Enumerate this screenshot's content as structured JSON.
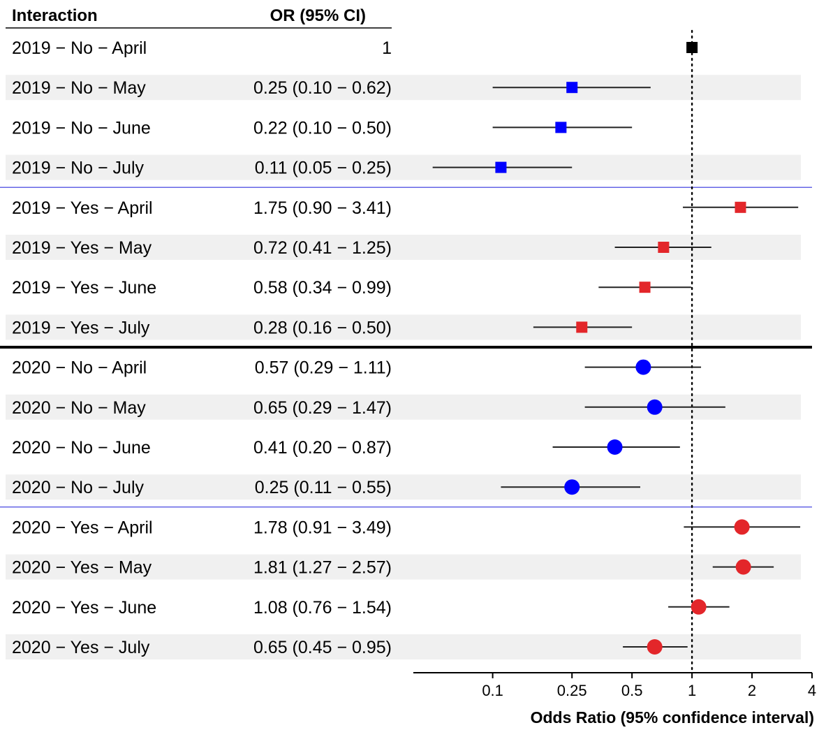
{
  "table_header": {
    "interaction": "Interaction",
    "or_ci": "OR (95% CI)"
  },
  "colors": {
    "reference": "#000000",
    "no": "#0000ff",
    "yes": "#e3262a",
    "stripe": "#f0f0f0",
    "minor_separator": "#3333dd",
    "major_separator": "#000000"
  },
  "chart_data": {
    "type": "forest",
    "title": "",
    "xlabel": "Odds Ratio (95% confidence interval)",
    "xscale": "log",
    "xlim": [
      0.04,
      4
    ],
    "xticks": [
      0.1,
      0.25,
      0.5,
      1,
      2,
      4
    ],
    "xtick_labels": [
      "0.1",
      "0.25",
      "0.5",
      "1",
      "2",
      "4"
    ],
    "reference_line": 1,
    "rows": [
      {
        "label": "2019 − No − April",
        "or_text": "1",
        "or": 1,
        "lower": null,
        "upper": null,
        "year": "2019",
        "group": "reference",
        "marker": "square"
      },
      {
        "label": "2019 − No − May",
        "or_text": "0.25 (0.10 − 0.62)",
        "or": 0.25,
        "lower": 0.1,
        "upper": 0.62,
        "year": "2019",
        "group": "no",
        "marker": "square"
      },
      {
        "label": "2019 − No − June",
        "or_text": "0.22 (0.10 − 0.50)",
        "or": 0.22,
        "lower": 0.1,
        "upper": 0.5,
        "year": "2019",
        "group": "no",
        "marker": "square"
      },
      {
        "label": "2019 − No − July",
        "or_text": "0.11 (0.05 − 0.25)",
        "or": 0.11,
        "lower": 0.05,
        "upper": 0.25,
        "year": "2019",
        "group": "no",
        "marker": "square"
      },
      {
        "label": "2019 − Yes − April",
        "or_text": "1.75 (0.90 − 3.41)",
        "or": 1.75,
        "lower": 0.9,
        "upper": 3.41,
        "year": "2019",
        "group": "yes",
        "marker": "square"
      },
      {
        "label": "2019 − Yes − May",
        "or_text": "0.72 (0.41 − 1.25)",
        "or": 0.72,
        "lower": 0.41,
        "upper": 1.25,
        "year": "2019",
        "group": "yes",
        "marker": "square"
      },
      {
        "label": "2019 − Yes − June",
        "or_text": "0.58 (0.34 − 0.99)",
        "or": 0.58,
        "lower": 0.34,
        "upper": 0.99,
        "year": "2019",
        "group": "yes",
        "marker": "square"
      },
      {
        "label": "2019 − Yes − July",
        "or_text": "0.28 (0.16 − 0.50)",
        "or": 0.28,
        "lower": 0.16,
        "upper": 0.5,
        "year": "2019",
        "group": "yes",
        "marker": "square"
      },
      {
        "label": "2020 − No − April",
        "or_text": "0.57 (0.29 − 1.11)",
        "or": 0.57,
        "lower": 0.29,
        "upper": 1.11,
        "year": "2020",
        "group": "no",
        "marker": "circle"
      },
      {
        "label": "2020 − No − May",
        "or_text": "0.65 (0.29 − 1.47)",
        "or": 0.65,
        "lower": 0.29,
        "upper": 1.47,
        "year": "2020",
        "group": "no",
        "marker": "circle"
      },
      {
        "label": "2020 − No − June",
        "or_text": "0.41 (0.20 − 0.87)",
        "or": 0.41,
        "lower": 0.2,
        "upper": 0.87,
        "year": "2020",
        "group": "no",
        "marker": "circle"
      },
      {
        "label": "2020 − No − July",
        "or_text": "0.25 (0.11 − 0.55)",
        "or": 0.25,
        "lower": 0.11,
        "upper": 0.55,
        "year": "2020",
        "group": "no",
        "marker": "circle"
      },
      {
        "label": "2020 − Yes − April",
        "or_text": "1.78 (0.91 − 3.49)",
        "or": 1.78,
        "lower": 0.91,
        "upper": 3.49,
        "year": "2020",
        "group": "yes",
        "marker": "circle"
      },
      {
        "label": "2020 − Yes − May",
        "or_text": "1.81 (1.27 − 2.57)",
        "or": 1.81,
        "lower": 1.27,
        "upper": 2.57,
        "year": "2020",
        "group": "yes",
        "marker": "circle"
      },
      {
        "label": "2020 − Yes − June",
        "or_text": "1.08 (0.76 − 1.54)",
        "or": 1.08,
        "lower": 0.76,
        "upper": 1.54,
        "year": "2020",
        "group": "yes",
        "marker": "circle"
      },
      {
        "label": "2020 − Yes − July",
        "or_text": "0.65 (0.45 − 0.95)",
        "or": 0.65,
        "lower": 0.45,
        "upper": 0.95,
        "year": "2020",
        "group": "yes",
        "marker": "circle"
      }
    ]
  }
}
